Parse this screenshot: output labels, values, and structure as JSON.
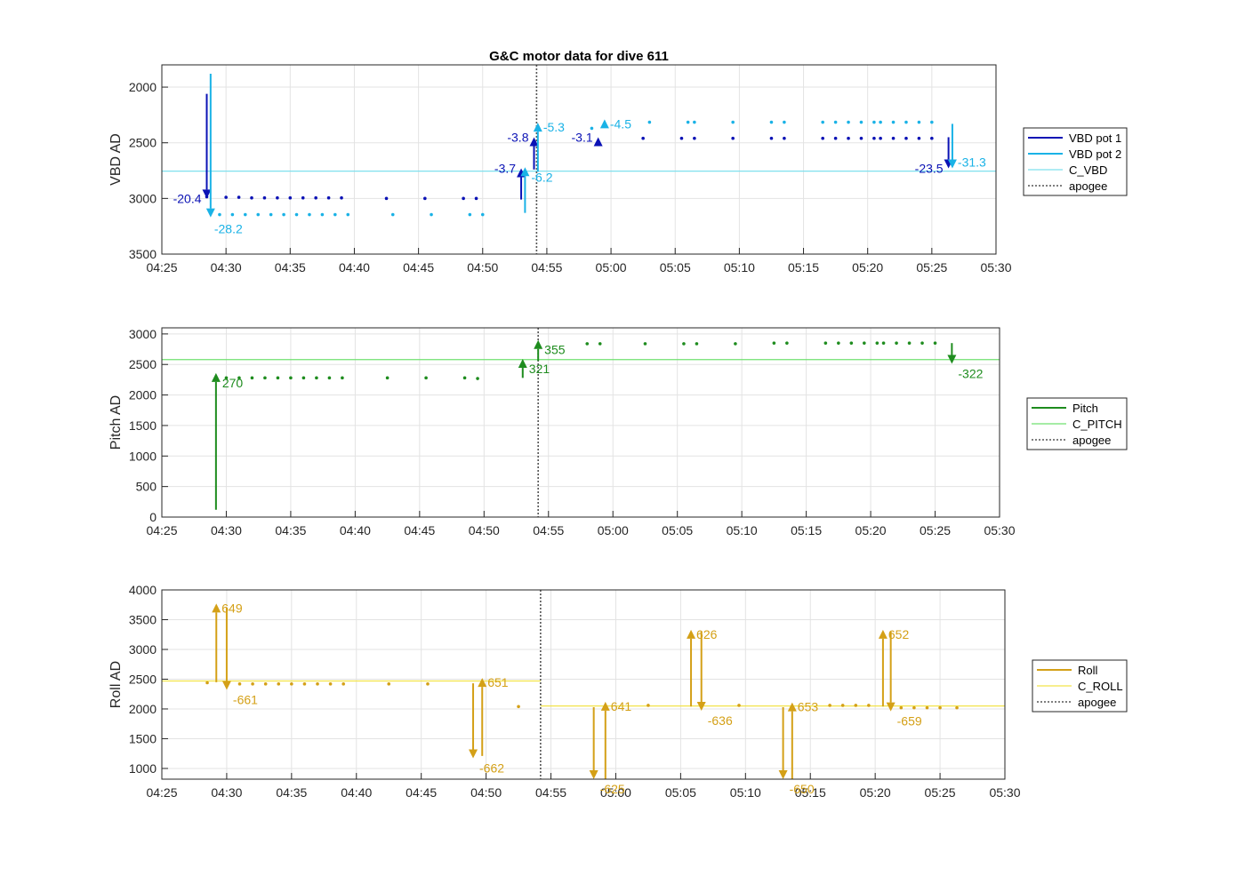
{
  "chart_data": {
    "title": "G&C motor data for dive 611",
    "x_ticks": [
      "04:25",
      "04:30",
      "04:35",
      "04:40",
      "04:45",
      "04:50",
      "04:55",
      "05:00",
      "05:05",
      "05:10",
      "05:15",
      "05:20",
      "05:25",
      "05:30"
    ],
    "x_range_min": [
      265,
      330
    ],
    "apogee_min": 294.2,
    "panels": [
      {
        "id": "vbd",
        "type": "line",
        "ylabel": "VBD AD",
        "ylim": [
          1800,
          3500
        ],
        "y_reversed": true,
        "y_ticks": [
          2000,
          2500,
          3000,
          3500
        ],
        "legend": [
          "VBD pot 1",
          "VBD pot 2",
          "C_VBD",
          "apogee"
        ],
        "colors": {
          "pot1": "#0b12b5",
          "pot2": "#1ab2e6",
          "ref": "#7fe0ee"
        },
        "reference": 2755,
        "series": [
          {
            "name": "VBD pot 1",
            "color": "#0b12b5",
            "points": [
              [
                268.5,
                2985
              ],
              [
                270,
                2990
              ],
              [
                271,
                2990
              ],
              [
                272,
                2995
              ],
              [
                273,
                2995
              ],
              [
                274,
                2995
              ],
              [
                275,
                2995
              ],
              [
                276,
                2995
              ],
              [
                277,
                2995
              ],
              [
                278,
                2995
              ],
              [
                279,
                2995
              ],
              [
                282.5,
                3000
              ],
              [
                285.5,
                3000
              ],
              [
                288.5,
                3000
              ],
              [
                289.5,
                3000
              ],
              [
                302.5,
                2460
              ],
              [
                305.5,
                2460
              ],
              [
                306.5,
                2460
              ],
              [
                309.5,
                2460
              ],
              [
                312.5,
                2460
              ],
              [
                313.5,
                2460
              ],
              [
                316.5,
                2460
              ],
              [
                317.5,
                2460
              ],
              [
                318.5,
                2460
              ],
              [
                319.5,
                2460
              ],
              [
                320.5,
                2460
              ],
              [
                321,
                2460
              ],
              [
                322,
                2460
              ],
              [
                323,
                2460
              ],
              [
                324,
                2460
              ],
              [
                325,
                2460
              ]
            ],
            "moves": [
              {
                "t": 268.5,
                "from": 2060,
                "to": 3000,
                "label": "-20.4",
                "label_side": "left"
              },
              {
                "t": 293,
                "from": 3010,
                "to": 2730,
                "label": "-3.7",
                "label_side": "left"
              },
              {
                "t": 294,
                "from": 2740,
                "to": 2450,
                "label": "-3.8",
                "label_side": "left"
              },
              {
                "t": 299,
                "from": 2470,
                "to": 2450,
                "label": "-3.1",
                "label_side": "left"
              },
              {
                "t": 326.3,
                "from": 2450,
                "to": 2730,
                "label": "-23.5",
                "label_side": "left"
              }
            ]
          },
          {
            "name": "VBD pot 2",
            "color": "#1ab2e6",
            "points": [
              [
                269.5,
                3145
              ],
              [
                270.5,
                3145
              ],
              [
                271.5,
                3145
              ],
              [
                272.5,
                3145
              ],
              [
                273.5,
                3145
              ],
              [
                274.5,
                3145
              ],
              [
                275.5,
                3145
              ],
              [
                276.5,
                3145
              ],
              [
                277.5,
                3145
              ],
              [
                278.5,
                3145
              ],
              [
                279.5,
                3145
              ],
              [
                283,
                3145
              ],
              [
                286,
                3145
              ],
              [
                289,
                3145
              ],
              [
                290,
                3145
              ],
              [
                298.5,
                2370
              ],
              [
                303,
                2315
              ],
              [
                306,
                2315
              ],
              [
                306.5,
                2315
              ],
              [
                309.5,
                2315
              ],
              [
                312.5,
                2315
              ],
              [
                313.5,
                2315
              ],
              [
                316.5,
                2315
              ],
              [
                317.5,
                2315
              ],
              [
                318.5,
                2315
              ],
              [
                319.5,
                2315
              ],
              [
                320.5,
                2315
              ],
              [
                321,
                2315
              ],
              [
                322,
                2315
              ],
              [
                323,
                2315
              ],
              [
                324,
                2315
              ],
              [
                325,
                2315
              ]
            ],
            "moves": [
              {
                "t": 268.8,
                "from": 1880,
                "to": 3170,
                "label": "-28.2",
                "label_side": "below"
              },
              {
                "t": 293.3,
                "from": 3130,
                "to": 2720,
                "label": "-6.2",
                "label_side": "below-right"
              },
              {
                "t": 294.3,
                "from": 2760,
                "to": 2320,
                "label": "-5.3",
                "label_side": "right"
              },
              {
                "t": 299.5,
                "from": 2370,
                "to": 2290,
                "label": "-4.5",
                "label_side": "right"
              },
              {
                "t": 326.6,
                "from": 2330,
                "to": 2730,
                "label": "-31.3",
                "label_side": "right"
              }
            ]
          }
        ]
      },
      {
        "id": "pitch",
        "type": "line",
        "ylabel": "Pitch AD",
        "ylim": [
          0,
          3100
        ],
        "y_reversed": false,
        "y_ticks": [
          0,
          500,
          1000,
          1500,
          2000,
          2500,
          3000
        ],
        "legend": [
          "Pitch",
          "C_PITCH",
          "apogee"
        ],
        "colors": {
          "main": "#1e8c1e",
          "ref": "#6fe06f"
        },
        "reference": 2580,
        "series": [
          {
            "name": "Pitch",
            "color": "#1e8c1e",
            "points": [
              [
                270,
                2280
              ],
              [
                271,
                2280
              ],
              [
                272,
                2280
              ],
              [
                273,
                2280
              ],
              [
                274,
                2280
              ],
              [
                275,
                2280
              ],
              [
                276,
                2280
              ],
              [
                277,
                2280
              ],
              [
                278,
                2280
              ],
              [
                279,
                2280
              ],
              [
                282.5,
                2280
              ],
              [
                285.5,
                2280
              ],
              [
                288.5,
                2280
              ],
              [
                289.5,
                2270
              ],
              [
                298,
                2840
              ],
              [
                299,
                2840
              ],
              [
                302.5,
                2840
              ],
              [
                305.5,
                2840
              ],
              [
                306.5,
                2840
              ],
              [
                309.5,
                2840
              ],
              [
                312.5,
                2850
              ],
              [
                313.5,
                2850
              ],
              [
                316.5,
                2850
              ],
              [
                317.5,
                2850
              ],
              [
                318.5,
                2850
              ],
              [
                319.5,
                2850
              ],
              [
                320.5,
                2850
              ],
              [
                321,
                2850
              ],
              [
                322,
                2850
              ],
              [
                323,
                2850
              ],
              [
                324,
                2850
              ],
              [
                325,
                2850
              ]
            ],
            "moves": [
              {
                "t": 269.2,
                "from": 120,
                "to": 2360,
                "label": "270",
                "label_side": "below-right"
              },
              {
                "t": 293,
                "from": 2280,
                "to": 2590,
                "label": "321",
                "label_side": "below-right"
              },
              {
                "t": 294.2,
                "from": 2560,
                "to": 2900,
                "label": "355",
                "label_side": "below-right"
              },
              {
                "t": 326.3,
                "from": 2850,
                "to": 2510,
                "label": "-322",
                "label_side": "below-right"
              }
            ]
          }
        ]
      },
      {
        "id": "roll",
        "type": "line",
        "ylabel": "Roll AD",
        "ylim": [
          820,
          4000
        ],
        "y_reversed": false,
        "y_ticks": [
          1000,
          1500,
          2000,
          2500,
          3000,
          3500,
          4000
        ],
        "legend": [
          "Roll",
          "C_ROLL",
          "apogee"
        ],
        "colors": {
          "main": "#d4a017",
          "ref": "#f2e34a"
        },
        "reference_segments": [
          [
            265,
            294.2,
            2470
          ],
          [
            294.2,
            330,
            2050
          ]
        ],
        "series": [
          {
            "name": "Roll",
            "color": "#d4a017",
            "points": [
              [
                268.5,
                2440
              ],
              [
                271,
                2420
              ],
              [
                272,
                2420
              ],
              [
                273,
                2420
              ],
              [
                274,
                2420
              ],
              [
                275,
                2420
              ],
              [
                276,
                2420
              ],
              [
                277,
                2420
              ],
              [
                278,
                2420
              ],
              [
                279,
                2420
              ],
              [
                282.5,
                2420
              ],
              [
                285.5,
                2420
              ],
              [
                292.5,
                2040
              ],
              [
                302.5,
                2060
              ],
              [
                309.5,
                2060
              ],
              [
                316.5,
                2060
              ],
              [
                317.5,
                2060
              ],
              [
                318.5,
                2060
              ],
              [
                319.5,
                2060
              ],
              [
                322,
                2020
              ],
              [
                323,
                2020
              ],
              [
                324,
                2020
              ],
              [
                325,
                2020
              ],
              [
                326.3,
                2020
              ]
            ],
            "moves": [
              {
                "t": 269.2,
                "from": 2450,
                "to": 3770,
                "label": "649",
                "label_side": "right"
              },
              {
                "t": 270,
                "from": 3700,
                "to": 2320,
                "label": "-661",
                "label_side": "below-right"
              },
              {
                "t": 289,
                "from": 2430,
                "to": 1170,
                "label": "-662",
                "label_side": "below-right"
              },
              {
                "t": 289.7,
                "from": 1210,
                "to": 2520,
                "label": "651",
                "label_side": "right"
              },
              {
                "t": 298.3,
                "from": 2030,
                "to": 820,
                "label": "-625",
                "label_side": "below-right"
              },
              {
                "t": 299.2,
                "from": 820,
                "to": 2120,
                "label": "641",
                "label_side": "right"
              },
              {
                "t": 305.8,
                "from": 2040,
                "to": 3330,
                "label": "626",
                "label_side": "right"
              },
              {
                "t": 306.6,
                "from": 3300,
                "to": 1970,
                "label": "-636",
                "label_side": "below-right"
              },
              {
                "t": 312.9,
                "from": 2030,
                "to": 820,
                "label": "-650",
                "label_side": "below-right"
              },
              {
                "t": 313.6,
                "from": 820,
                "to": 2110,
                "label": "653",
                "label_side": "right"
              },
              {
                "t": 320.6,
                "from": 2040,
                "to": 3330,
                "label": "652",
                "label_side": "right"
              },
              {
                "t": 321.2,
                "from": 3300,
                "to": 1960,
                "label": "-659",
                "label_side": "below-right"
              }
            ]
          }
        ]
      }
    ]
  }
}
